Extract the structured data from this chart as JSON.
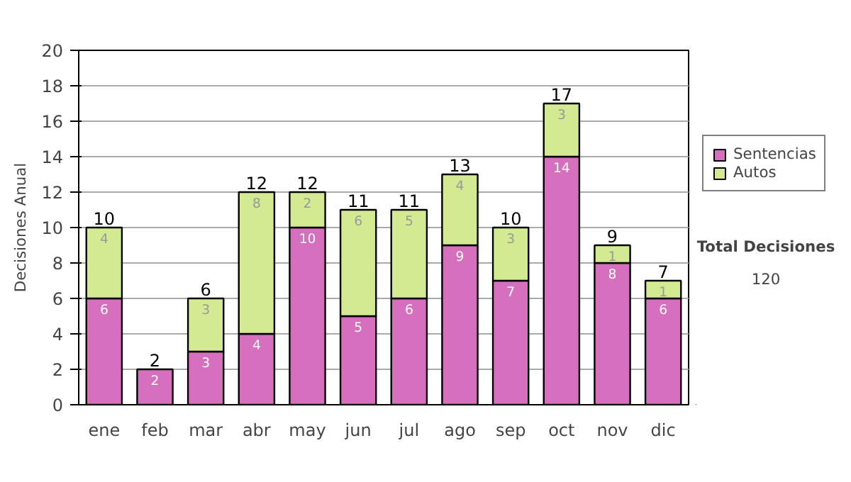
{
  "chart_data": {
    "type": "bar",
    "stacked": true,
    "ylabel": "Decisiones Anual",
    "categories": [
      "ene",
      "feb",
      "mar",
      "abr",
      "may",
      "jun",
      "jul",
      "ago",
      "sep",
      "oct",
      "nov",
      "dic"
    ],
    "series": [
      {
        "name": "Sentencias",
        "color": "#d66fbd",
        "values": [
          6,
          2,
          3,
          4,
          10,
          5,
          6,
          9,
          7,
          14,
          8,
          6
        ],
        "value_labels": [
          "6",
          "2",
          "3",
          "4",
          "10",
          "5",
          "6",
          "9",
          "7",
          "14",
          "8",
          "6"
        ]
      },
      {
        "name": "Autos",
        "color": "#d3ea92",
        "values": [
          4,
          0,
          3,
          8,
          2,
          6,
          5,
          4,
          3,
          3,
          1,
          1
        ],
        "value_labels": [
          "4",
          null,
          "3",
          "8",
          "2",
          "6",
          "5",
          "4",
          "3",
          "3",
          "1",
          "1"
        ]
      }
    ],
    "totals": [
      "10",
      "2",
      "6",
      "12",
      "12",
      "11",
      "11",
      "13",
      "10",
      "17",
      "9",
      "7"
    ],
    "ylim": [
      0,
      20
    ],
    "yticks": [
      0,
      2,
      4,
      6,
      8,
      10,
      12,
      14,
      16,
      18,
      20
    ],
    "grid": "y",
    "legend": "right",
    "annotations": [
      "Total Decisiones",
      "120"
    ]
  }
}
